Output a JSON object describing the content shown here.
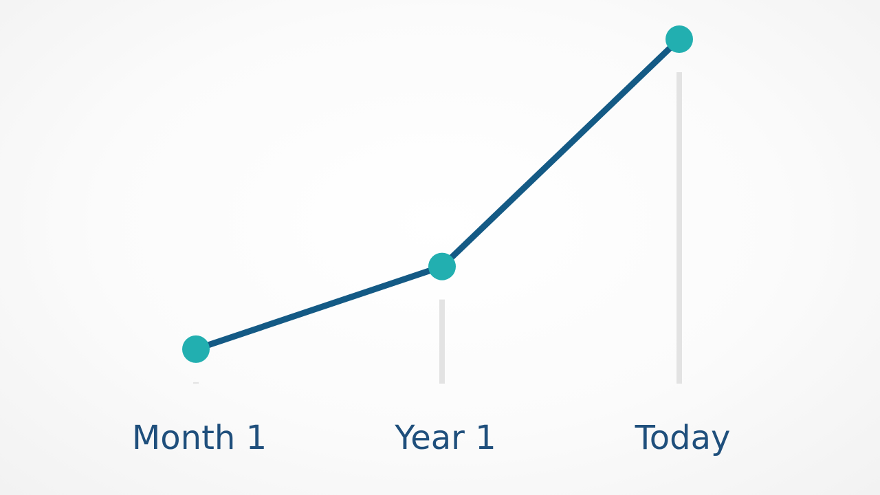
{
  "chart_data": {
    "type": "line",
    "categories": [
      "Month 1",
      "Year 1",
      "Today"
    ],
    "values": [
      10,
      34,
      100
    ],
    "ylim": [
      0,
      100
    ],
    "color": "#145a85",
    "marker_color": "#22afb0",
    "drop_lines": true
  }
}
